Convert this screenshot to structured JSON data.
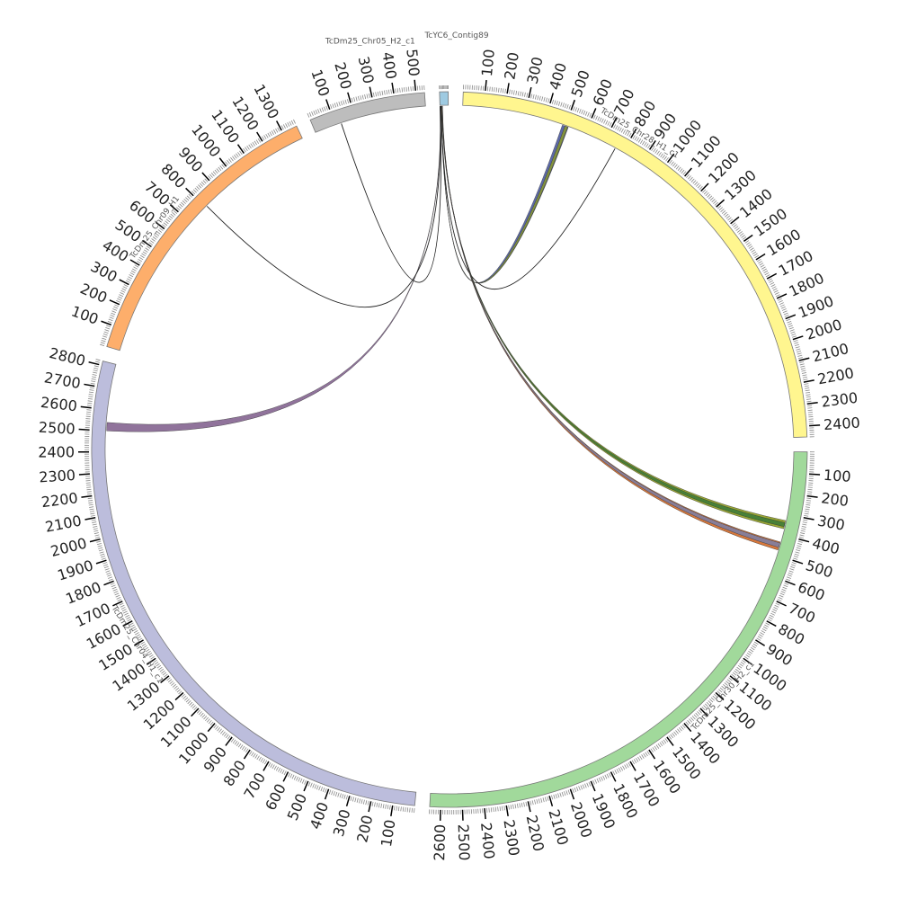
{
  "chart_data": {
    "type": "circos",
    "segments": [
      {
        "id": "contig89",
        "name": "TcYC6_Contig89",
        "length": 40,
        "color": "#9ecae1",
        "tick_labels": []
      },
      {
        "id": "chr28",
        "name": "TcDm25_Chr28_H1_c1",
        "length": 2450,
        "color": "#fff68f",
        "tick_labels": [
          "100",
          "200",
          "300",
          "400",
          "500",
          "600",
          "700",
          "800",
          "900",
          "1000",
          "1100",
          "1200",
          "1300",
          "1400",
          "1500",
          "1600",
          "1700",
          "1800",
          "1900",
          "2000",
          "2100",
          "2200",
          "2300",
          "2400"
        ]
      },
      {
        "id": "chr30",
        "name": "TcDm25_Chr30_H2_c1",
        "length": 2650,
        "color": "#a1d99b",
        "tick_labels": [
          "100",
          "200",
          "300",
          "400",
          "500",
          "600",
          "700",
          "800",
          "900",
          "1000",
          "1100",
          "1200",
          "1300",
          "1400",
          "1500",
          "1600",
          "1700",
          "1800",
          "1900",
          "2000",
          "2100",
          "2200",
          "2300",
          "2400",
          "2500",
          "2600"
        ]
      },
      {
        "id": "chr04",
        "name": "TcDm25_Chr04_H1_c1",
        "length": 2820,
        "color": "#bcbddc",
        "tick_labels": [
          "100",
          "200",
          "300",
          "400",
          "500",
          "600",
          "700",
          "800",
          "900",
          "1000",
          "1100",
          "1200",
          "1300",
          "1400",
          "1500",
          "1600",
          "1700",
          "1800",
          "1900",
          "2000",
          "2100",
          "2200",
          "2300",
          "2400",
          "2500",
          "2600",
          "2700",
          "2800"
        ]
      },
      {
        "id": "chr09",
        "name": "TcDm25_Chr09_H1",
        "length": 1370,
        "color": "#fdae6b",
        "tick_labels": [
          "100",
          "200",
          "300",
          "400",
          "500",
          "600",
          "700",
          "800",
          "900",
          "1000",
          "1100",
          "1200",
          "1300"
        ]
      },
      {
        "id": "chr05",
        "name": "TcDm25_Chr05_H2_c1",
        "length": 540,
        "color": "#bdbdbd",
        "tick_labels": [
          "100",
          "200",
          "300",
          "400",
          "500"
        ]
      }
    ],
    "links": [
      {
        "from": "contig89",
        "from_pos": [
          4,
          6
        ],
        "to": "chr28",
        "to_pos": [
          485,
          515
        ],
        "color": "#3f4f9a",
        "type": "ribbon"
      },
      {
        "from": "contig89",
        "from_pos": [
          5,
          6
        ],
        "to": "chr28",
        "to_pos": [
          498,
          512
        ],
        "color": "#8a9a2a",
        "type": "ribbon"
      },
      {
        "from": "contig89",
        "from_pos": [
          5,
          6
        ],
        "to": "chr28",
        "to_pos": [
          760,
          762
        ],
        "color": "#222222",
        "type": "line"
      },
      {
        "from": "contig89",
        "from_pos": [
          8,
          10
        ],
        "to": "chr30",
        "to_pos": [
          330,
          370
        ],
        "color": "#8a9a10",
        "type": "ribbon"
      },
      {
        "from": "contig89",
        "from_pos": [
          9,
          10
        ],
        "to": "chr30",
        "to_pos": [
          340,
          360
        ],
        "color": "#3a7a3a",
        "type": "ribbon"
      },
      {
        "from": "contig89",
        "from_pos": [
          10,
          12
        ],
        "to": "chr30",
        "to_pos": [
          435,
          475
        ],
        "color": "#d0601a",
        "type": "ribbon"
      },
      {
        "from": "contig89",
        "from_pos": [
          11,
          12
        ],
        "to": "chr30",
        "to_pos": [
          440,
          462
        ],
        "color": "#7a7fa8",
        "type": "ribbon"
      },
      {
        "from": "contig89",
        "from_pos": [
          1,
          3
        ],
        "to": "chr04",
        "to_pos": [
          2500,
          2540
        ],
        "color": "#7d5a8a",
        "type": "ribbon"
      },
      {
        "from": "contig89",
        "from_pos": [
          1,
          2
        ],
        "to": "chr09",
        "to_pos": [
          810,
          812
        ],
        "color": "#222222",
        "type": "line"
      },
      {
        "from": "contig89",
        "from_pos": [
          2,
          3
        ],
        "to": "chr05",
        "to_pos": [
          130,
          132
        ],
        "color": "#222222",
        "type": "line"
      }
    ]
  }
}
